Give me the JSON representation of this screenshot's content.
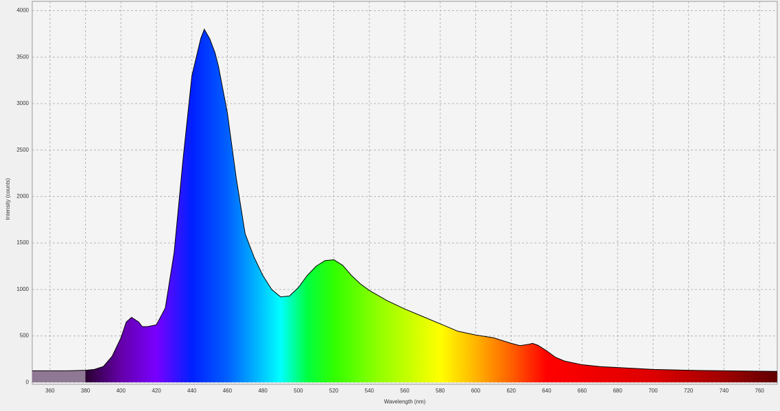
{
  "chart_data": {
    "type": "area",
    "x_label": "Wavelength (nm)",
    "y_label": "Intensity (counts)",
    "x": [
      350,
      360,
      370,
      380,
      385,
      390,
      395,
      400,
      403,
      406,
      410,
      412,
      415,
      420,
      425,
      430,
      435,
      440,
      445,
      447,
      450,
      453,
      455,
      460,
      465,
      470,
      475,
      480,
      485,
      490,
      495,
      500,
      505,
      510,
      515,
      520,
      525,
      530,
      535,
      540,
      550,
      560,
      570,
      580,
      590,
      600,
      610,
      620,
      625,
      630,
      632,
      635,
      640,
      645,
      650,
      660,
      670,
      680,
      690,
      700,
      720,
      740,
      760,
      770
    ],
    "values": [
      125,
      125,
      125,
      130,
      140,
      170,
      280,
      480,
      650,
      700,
      650,
      600,
      600,
      620,
      800,
      1400,
      2400,
      3300,
      3700,
      3800,
      3700,
      3550,
      3400,
      2900,
      2200,
      1600,
      1350,
      1150,
      1000,
      920,
      930,
      1020,
      1150,
      1250,
      1310,
      1320,
      1260,
      1150,
      1060,
      990,
      880,
      790,
      710,
      630,
      550,
      510,
      480,
      420,
      395,
      410,
      420,
      400,
      340,
      270,
      230,
      190,
      170,
      160,
      150,
      140,
      130,
      125,
      120,
      118
    ],
    "color": "#000000",
    "xlim": [
      350,
      770
    ],
    "ylim": [
      -20,
      4100
    ],
    "xticks": [
      360,
      380,
      400,
      420,
      440,
      460,
      480,
      500,
      520,
      540,
      560,
      580,
      600,
      620,
      640,
      660,
      680,
      700,
      720,
      740,
      760
    ],
    "yticks": [
      0,
      500,
      1000,
      1500,
      2000,
      2500,
      3000,
      3500,
      4000
    ],
    "grid": true
  }
}
